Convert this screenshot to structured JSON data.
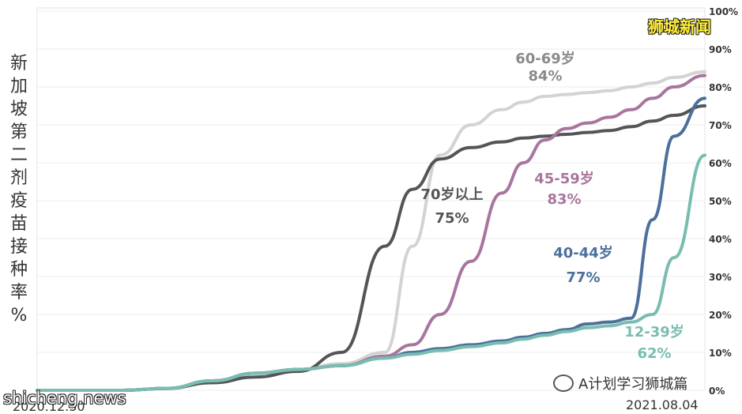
{
  "brand": "狮城新闻",
  "watermark": "shicheng.news",
  "wechat_account": "A计划学习狮城篇",
  "icons": {
    "wechat": "wechat-icon"
  },
  "chart_data": {
    "type": "line",
    "title": "",
    "ylabel": "新加坡第二剂疫苗接种率%",
    "xlabel": "",
    "x_start_label": "2020.12.30",
    "x_end_label": "2021.08.04",
    "x_range": [
      "2020-12-30",
      "2021-08-04"
    ],
    "ylim": [
      0,
      100
    ],
    "y_ticks": [
      "0%",
      "10%",
      "20%",
      "30%",
      "40%",
      "50%",
      "60%",
      "70%",
      "80%",
      "90%",
      "100%"
    ],
    "grid": "horizontal",
    "x": [
      "2020-12-30",
      "2021-01-12",
      "2021-01-27",
      "2021-02-10",
      "2021-02-25",
      "2021-03-11",
      "2021-03-25",
      "2021-04-08",
      "2021-04-22",
      "2021-05-01",
      "2021-05-10",
      "2021-05-20",
      "2021-05-30",
      "2021-06-06",
      "2021-06-13",
      "2021-06-20",
      "2021-06-27",
      "2021-07-04",
      "2021-07-11",
      "2021-07-18",
      "2021-07-25",
      "2021-08-04"
    ],
    "series": [
      {
        "name": "60-69岁",
        "label": "60-69岁",
        "value_label": "84%",
        "color": "#d3d3d3",
        "values": [
          0,
          0,
          0,
          0.5,
          2.5,
          4.5,
          5.5,
          7,
          10,
          38,
          62,
          70,
          74,
          76,
          77.5,
          78,
          78.5,
          79,
          80,
          81,
          82.5,
          84
        ]
      },
      {
        "name": "70岁以上",
        "label": "70岁以上",
        "value_label": "75%",
        "color": "#555555",
        "values": [
          0,
          0,
          0,
          0.5,
          2,
          3.5,
          5,
          10,
          38,
          53,
          61,
          64,
          65.5,
          66.5,
          67,
          67.5,
          68,
          68.5,
          69.5,
          71,
          72.5,
          75
        ]
      },
      {
        "name": "45-59岁",
        "label": "45-59岁",
        "value_label": "83%",
        "color": "#a8759e",
        "values": [
          0,
          0,
          0,
          0.5,
          2.5,
          4.5,
          5.5,
          6.5,
          9,
          12,
          20,
          34,
          52,
          60,
          66,
          69,
          70.5,
          72,
          74,
          77,
          80,
          83
        ]
      },
      {
        "name": "40-44岁",
        "label": "40-44岁",
        "value_label": "77%",
        "color": "#4c709c",
        "values": [
          0,
          0,
          0,
          0.5,
          2.5,
          4.5,
          5.5,
          6.5,
          8.5,
          10,
          11,
          12,
          13,
          14,
          15,
          16,
          17.5,
          18,
          19,
          45,
          67,
          77
        ]
      },
      {
        "name": "12-39岁",
        "label": "12-39岁",
        "value_label": "62%",
        "color": "#79bdb0",
        "values": [
          0,
          0,
          0,
          0.5,
          2.5,
          4.5,
          5.5,
          6.5,
          8.5,
          9.5,
          10.5,
          11.5,
          12.5,
          13.5,
          14.5,
          15.5,
          16.5,
          17,
          18,
          20,
          35,
          62
        ]
      }
    ]
  }
}
